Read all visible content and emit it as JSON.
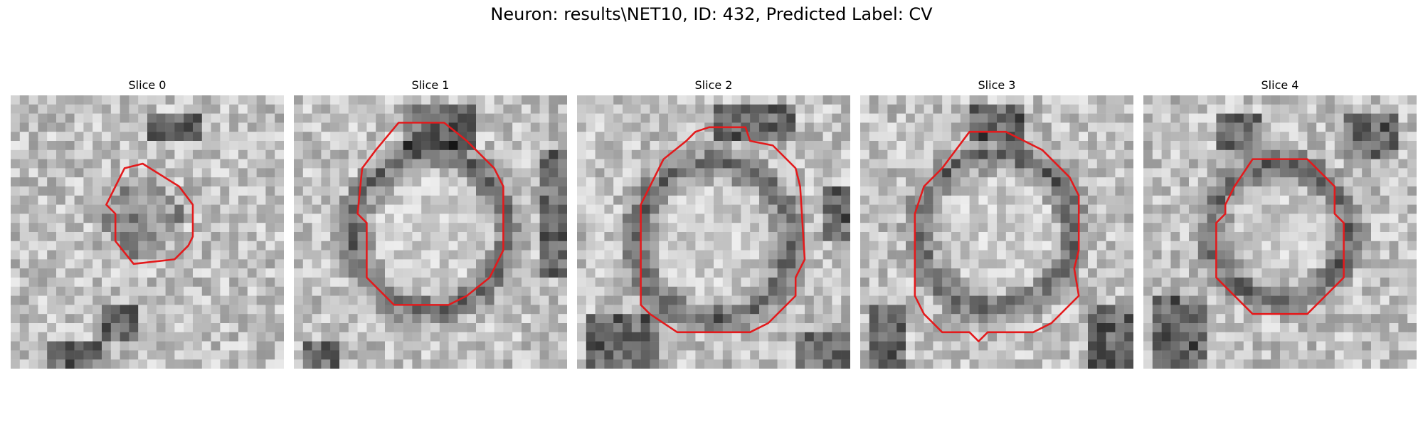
{
  "figure": {
    "title": "Neuron: results\\NET10, ID: 432, Predicted Label: CV"
  },
  "colors": {
    "contour": "#e31a1c",
    "background": "#ffffff"
  },
  "panels": [
    {
      "title": "Slice 0",
      "image": "grayscale-em-slice-small-dark-blob"
    },
    {
      "title": "Slice 1",
      "image": "grayscale-em-slice-ring-cell"
    },
    {
      "title": "Slice 2",
      "image": "grayscale-em-slice-ring-cell"
    },
    {
      "title": "Slice 3",
      "image": "grayscale-em-slice-ring-cell"
    },
    {
      "title": "Slice 4",
      "image": "grayscale-em-slice-ring-cell"
    }
  ]
}
